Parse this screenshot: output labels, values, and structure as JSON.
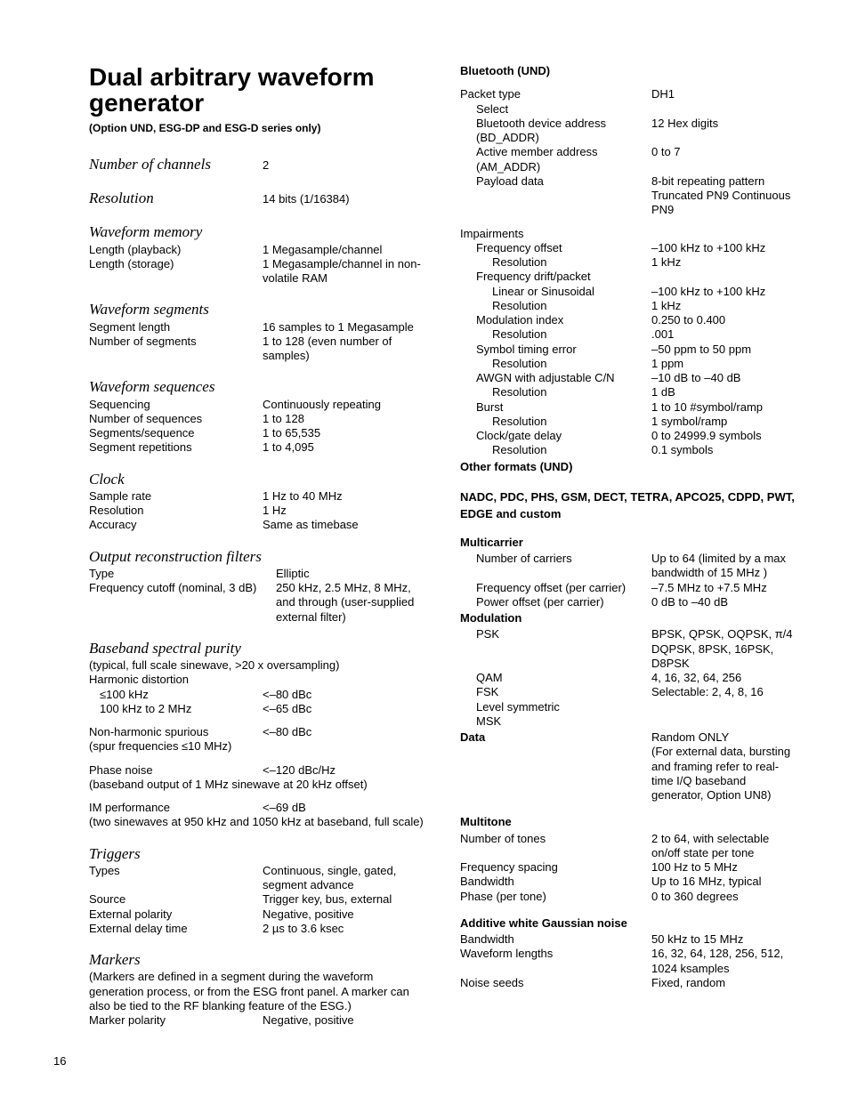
{
  "left": {
    "heading": "Dual arbitrary waveform generator",
    "subhead": "(Option UND, ESG-DP and ESG-D series only)",
    "sections": [
      {
        "title": "Number of channels",
        "rows": [
          {
            "l": "",
            "v": "2",
            "inline": true
          }
        ]
      },
      {
        "title": "Resolution",
        "rows": [
          {
            "l": "",
            "v": "14 bits (1/16384)",
            "inline": true
          }
        ]
      },
      {
        "title": "Waveform memory",
        "rows": [
          {
            "l": "Length (playback)",
            "v": "1 Megasample/channel"
          },
          {
            "l": "Length (storage)",
            "v": "1 Megasample/channel in non-volatile RAM"
          }
        ]
      },
      {
        "title": "Waveform segments",
        "rows": [
          {
            "l": "Segment length",
            "v": "16 samples to 1 Megasample"
          },
          {
            "l": "Number of segments",
            "v": "1 to 128 (even number of samples)"
          }
        ]
      },
      {
        "title": "Waveform sequences",
        "rows": [
          {
            "l": "Sequencing",
            "v": "Continuously repeating"
          },
          {
            "l": "Number of sequences",
            "v": "1 to 128"
          },
          {
            "l": "Segments/sequence",
            "v": "1 to 65,535"
          },
          {
            "l": "Segment repetitions",
            "v": "1 to 4,095"
          }
        ]
      },
      {
        "title": "Clock",
        "rows": [
          {
            "l": "Sample rate",
            "v": "1 Hz to 40 MHz"
          },
          {
            "l": "Resolution",
            "v": "1 Hz"
          },
          {
            "l": "Accuracy",
            "v": "Same as timebase"
          }
        ]
      },
      {
        "title": "Output reconstruction filters",
        "rows": [
          {
            "l": "Type",
            "v": "Elliptic",
            "wide": true
          },
          {
            "l": "Frequency cutoff  (nominal, 3 dB)",
            "v": "250 kHz, 2.5 MHz, 8 MHz, and through (user-supplied external filter)",
            "wide": true
          }
        ]
      },
      {
        "title": "Baseband spectral purity",
        "note": "(typical, full scale sinewave, >20 x oversampling)",
        "rows": [
          {
            "l": "Harmonic distortion",
            "v": ""
          },
          {
            "l": "≤100 kHz",
            "v": "<–80 dBc",
            "indent": true
          },
          {
            "l": "100 kHz to 2 MHz",
            "v": "<–65 dBc",
            "indent": true
          },
          {
            "gap": true
          },
          {
            "l": "Non-harmonic spurious",
            "v": "<–80 dBc"
          },
          {
            "l": "(spur frequencies ≤10 MHz)",
            "v": ""
          },
          {
            "gap": true
          },
          {
            "l": "Phase noise",
            "v": "<–120 dBc/Hz"
          },
          {
            "fullnote": "(baseband output of 1 MHz sinewave at 20 kHz offset)"
          },
          {
            "gap": true
          },
          {
            "l": "IM performance",
            "v": "<–69 dB"
          },
          {
            "fullnote": "(two sinewaves at 950 kHz and 1050 kHz at baseband, full scale)"
          }
        ]
      },
      {
        "title": "Triggers",
        "rows": [
          {
            "l": "Types",
            "v": "Continuous, single, gated, segment advance"
          },
          {
            "l": "Source",
            "v": "Trigger key, bus, external"
          },
          {
            "l": "External polarity",
            "v": "Negative, positive"
          },
          {
            "l": "External delay time",
            "v": "2 µs to 3.6 ksec"
          }
        ]
      },
      {
        "title": "Markers",
        "note": "(Markers are defined in a segment during the waveform generation process, or from the ESG front panel. A marker can also be tied to the RF blanking feature of the ESG.)",
        "rows": [
          {
            "l": "Marker polarity",
            "v": "Negative, positive"
          }
        ]
      }
    ]
  },
  "right": {
    "blocks": [
      {
        "heading": "Bluetooth (UND)",
        "groups": [
          {
            "rows": [
              {
                "l": "Packet type",
                "v": "DH1"
              },
              {
                "l": "Select",
                "v": "",
                "ind": 1
              },
              {
                "l": "Bluetooth device address (BD_ADDR)",
                "v": "12 Hex digits",
                "ind": 1
              },
              {
                "l": "Active member address (AM_ADDR)",
                "v": "0 to 7",
                "ind": 1
              },
              {
                "l": "Payload data",
                "v": "8-bit repeating pattern Truncated PN9 Continuous PN9",
                "ind": 1
              }
            ]
          },
          {
            "gap": true
          },
          {
            "rows": [
              {
                "l": "Impairments",
                "v": ""
              },
              {
                "l": "Frequency offset",
                "v": "–100 kHz to +100 kHz",
                "ind": 1
              },
              {
                "l": "Resolution",
                "v": "1 kHz",
                "ind": 2
              },
              {
                "l": "Frequency drift/packet",
                "v": "",
                "ind": 1
              },
              {
                "l": "Linear or Sinusoidal",
                "v": "–100 kHz to +100 kHz",
                "ind": 2
              },
              {
                "l": "Resolution",
                "v": "1 kHz",
                "ind": 2
              },
              {
                "l": "Modulation index",
                "v": "0.250 to 0.400",
                "ind": 1
              },
              {
                "l": "Resolution",
                "v": ".001",
                "ind": 2
              },
              {
                "l": "Symbol timing error",
                "v": "–50 ppm to 50 ppm",
                "ind": 1
              },
              {
                "l": "Resolution",
                "v": "1 ppm",
                "ind": 2
              },
              {
                "l": "AWGN with adjustable C/N",
                "v": "–10 dB to –40 dB",
                "ind": 1
              },
              {
                "l": "Resolution",
                "v": "1 dB",
                "ind": 2
              },
              {
                "l": "Burst",
                "v": "1 to 10 #symbol/ramp",
                "ind": 1
              },
              {
                "l": "Resolution",
                "v": "1 symbol/ramp",
                "ind": 2
              },
              {
                "l": "Clock/gate delay",
                "v": "0 to 24999.9 symbols",
                "ind": 1
              },
              {
                "l": "Resolution",
                "v": "0.1 symbols",
                "ind": 2
              }
            ]
          }
        ]
      },
      {
        "subheading_bold_tight": "Other formats (UND)"
      },
      {
        "subheading_bold": "NADC, PDC, PHS, GSM, DECT, TETRA, APCO25, CDPD, PWT, EDGE and custom"
      },
      {
        "subheading": "Multicarrier",
        "rows": [
          {
            "l": "Number of carriers",
            "v": "Up to 64 (limited by a max bandwidth of 15 MHz )",
            "ind": 1
          },
          {
            "l": "Frequency offset (per carrier)",
            "v": "–7.5 MHz to +7.5 MHz",
            "ind": 1
          },
          {
            "l": "Power offset (per carrier)",
            "v": "0 dB to –40 dB",
            "ind": 1
          }
        ]
      },
      {
        "subheading": "Modulation",
        "tight": true,
        "rows": [
          {
            "l": "PSK",
            "v": "BPSK, QPSK, OQPSK, π/4 DQPSK, 8PSK, 16PSK, D8PSK",
            "ind": 1
          },
          {
            "l": "QAM",
            "v": "4, 16, 32, 64, 256",
            "ind": 1
          },
          {
            "l": "FSK",
            "v": "Selectable: 2, 4, 8, 16",
            "ind": 1
          },
          {
            "l": "Level symmetric",
            "v": "",
            "ind": 1
          },
          {
            "l": "MSK",
            "v": "",
            "ind": 1
          }
        ]
      },
      {
        "subheading": "Data",
        "tight": true,
        "value": "Random ONLY\n(For external data, bursting and framing refer to real-time I/Q baseband generator, Option UN8)"
      },
      {
        "subheading": "Multitone",
        "rows": [
          {
            "l": "Number of tones",
            "v": "2 to 64, with selectable on/off state per tone"
          },
          {
            "l": "Frequency spacing",
            "v": "100 Hz to 5 MHz"
          },
          {
            "l": "Bandwidth",
            "v": "Up to 16 MHz, typical"
          },
          {
            "l": "Phase (per tone)",
            "v": "0 to 360 degrees"
          }
        ]
      },
      {
        "subheading": "Additive white Gaussian noise",
        "rows": [
          {
            "l": "Bandwidth",
            "v": "50 kHz to 15 MHz"
          },
          {
            "l": "Waveform lengths",
            "v": "16, 32, 64, 128, 256, 512, 1024 ksamples"
          },
          {
            "l": "Noise seeds",
            "v": "Fixed, random"
          }
        ]
      }
    ]
  },
  "page": "16"
}
